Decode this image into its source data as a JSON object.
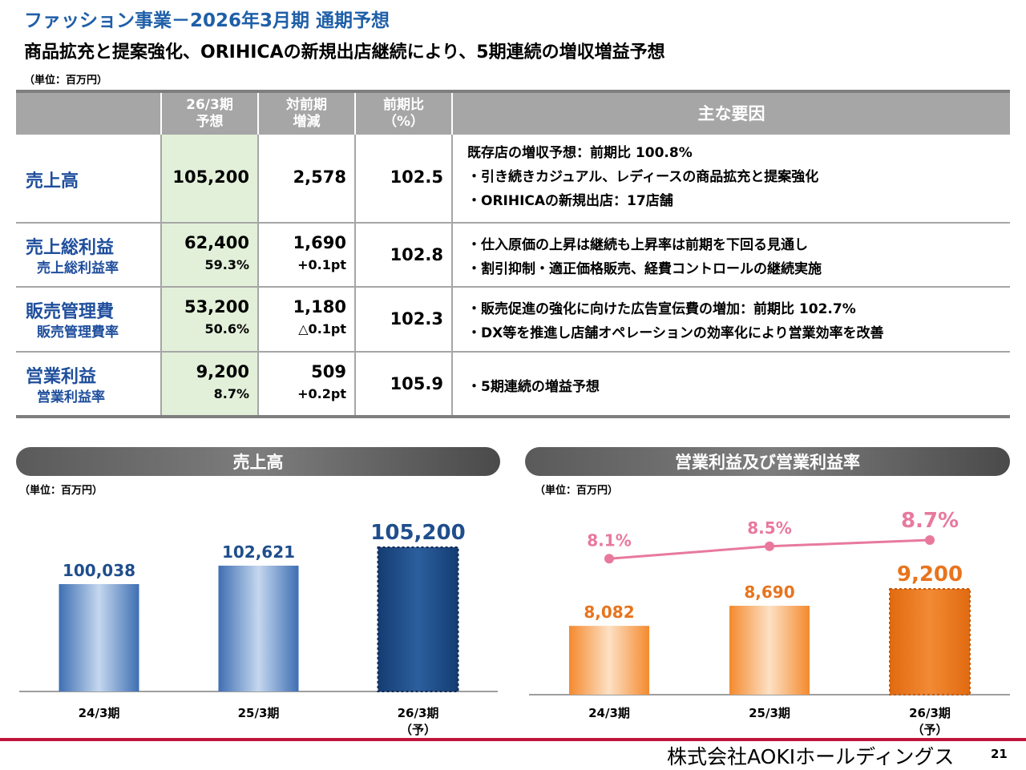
{
  "header": {
    "title": "ファッション事業－2026年3月期 通期予想",
    "subtitle": "商品拡充と提案強化、ORIHICAの新規出店継続により、5期連続の増収増益予想",
    "unit": "（単位：百万円）"
  },
  "table": {
    "headers": {
      "forecast_l1": "26/3期",
      "forecast_l2": "予想",
      "diff_l1": "対前期",
      "diff_l2": "増減",
      "pct_l1": "前期比",
      "pct_l2": "（%）",
      "factors": "主な要因"
    },
    "rows": [
      {
        "name": "売上高",
        "sub": "",
        "value": "105,200",
        "value_sub": "",
        "diff": "2,578",
        "diff_sub": "",
        "pct": "102.5",
        "factors": [
          "既存店の増収予想：前期比 100.8%",
          "・引き続きカジュアル、レディースの商品拡充と提案強化",
          "・ORIHICAの新規出店：17店舗"
        ]
      },
      {
        "name": "売上総利益",
        "sub": "売上総利益率",
        "value": "62,400",
        "value_sub": "59.3%",
        "diff": "1,690",
        "diff_sub": "+0.1pt",
        "pct": "102.8",
        "factors": [
          "・仕入原価の上昇は継続も上昇率は前期を下回る見通し",
          "・割引抑制・適正価格販売、経費コントロールの継続実施"
        ]
      },
      {
        "name": "販売管理費",
        "sub": "販売管理費率",
        "value": "53,200",
        "value_sub": "50.6%",
        "diff": "1,180",
        "diff_sub": "△0.1pt",
        "pct": "102.3",
        "factors": [
          "・販売促進の強化に向けた広告宣伝費の増加：前期比 102.7%",
          "・DX等を推進し店舗オペレーションの効率化により営業効率を改善"
        ]
      },
      {
        "name": "営業利益",
        "sub": "営業利益率",
        "value": "9,200",
        "value_sub": "8.7%",
        "diff": "509",
        "diff_sub": "+0.2pt",
        "pct": "105.9",
        "factors": [
          "・5期連続の増益予想"
        ]
      }
    ]
  },
  "chart_data": [
    {
      "type": "bar",
      "title": "売上高",
      "unit": "（単位：百万円）",
      "categories": [
        "24/3期",
        "25/3期",
        "26/3期"
      ],
      "category_notes": [
        "",
        "",
        "（予）"
      ],
      "values": [
        100038,
        102621,
        105200
      ],
      "value_labels": [
        "100,038",
        "102,621",
        "105,200"
      ],
      "forecast_index": 2,
      "colors": {
        "actual": "#4f7fbd",
        "forecast": "#1f4e8c"
      }
    },
    {
      "type": "bar",
      "title": "営業利益及び営業利益率",
      "unit": "（単位：百万円）",
      "categories": [
        "24/3期",
        "25/3期",
        "26/3期"
      ],
      "category_notes": [
        "",
        "",
        "（予）"
      ],
      "values": [
        8082,
        8690,
        9200
      ],
      "value_labels": [
        "8,082",
        "8,690",
        "9,200"
      ],
      "forecast_index": 2,
      "colors": {
        "actual": "#f5a25a",
        "forecast": "#e8741d",
        "line": "#e8799d"
      },
      "line_series": {
        "name": "営業利益率",
        "values": [
          8.1,
          8.5,
          8.7
        ],
        "labels": [
          "8.1%",
          "8.5%",
          "8.7%"
        ]
      }
    }
  ],
  "footer": {
    "company": "株式会社AOKIホールディングス",
    "page": "21"
  }
}
